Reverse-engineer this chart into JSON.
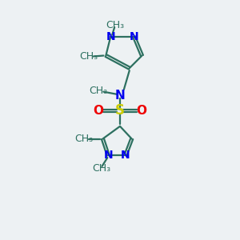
{
  "bg_color": "#edf1f3",
  "bond_color": "#2d7060",
  "N_color": "#0000ee",
  "S_color": "#cccc00",
  "O_color": "#ee0000",
  "line_width": 1.6,
  "font_size": 10,
  "font_size_small": 9,
  "xlim": [
    0,
    10
  ],
  "ylim": [
    0,
    15
  ]
}
